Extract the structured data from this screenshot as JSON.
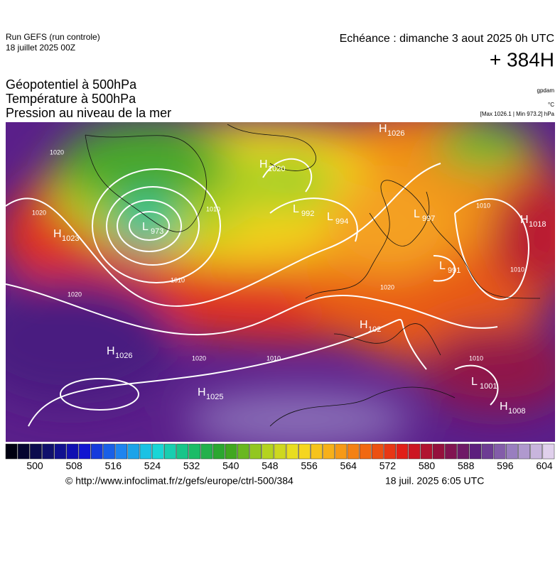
{
  "header": {
    "run": "Run GEFS (run controle)",
    "run_date": "18 juillet 2025 00Z",
    "valid": "Echéance : dimanche 3 aout 2025 0h UTC",
    "lead": "+ 384H",
    "fields": [
      "Géopotentiel à 500hPa",
      "Température à 500hPa",
      "Pression au niveau de la mer"
    ],
    "units": [
      "gpdam",
      "°C",
      "[Max 1026.1 | Min 973.2] hPa"
    ]
  },
  "map": {
    "centers": [
      {
        "kind": "H",
        "value": "1023"
      },
      {
        "kind": "L",
        "value": "973"
      },
      {
        "kind": "H",
        "value": "1020"
      },
      {
        "kind": "L",
        "value": "992"
      },
      {
        "kind": "L",
        "value": "994"
      },
      {
        "kind": "H",
        "value": "1026"
      },
      {
        "kind": "H",
        "value": "1018"
      },
      {
        "kind": "L",
        "value": "991"
      },
      {
        "kind": "H",
        "value": "1026"
      },
      {
        "kind": "H",
        "value": "1025"
      },
      {
        "kind": "H",
        "value": "102"
      },
      {
        "kind": "L",
        "value": "1001"
      },
      {
        "kind": "H",
        "value": "1008"
      },
      {
        "kind": "L",
        "value": "997"
      }
    ],
    "isobar_labels": [
      "1020",
      "1020",
      "1010",
      "1010",
      "1020",
      "1020",
      "1010",
      "1010",
      "1010",
      "1010",
      "1020"
    ]
  },
  "colorbar": {
    "ticks": [
      500,
      508,
      516,
      524,
      532,
      540,
      548,
      556,
      564,
      572,
      580,
      588,
      596,
      604
    ]
  },
  "footer": {
    "source": "© http://www.infoclimat.fr/z/gefs/europe/ctrl-500/384",
    "generated": "18 juil. 2025  6:05 UTC"
  }
}
